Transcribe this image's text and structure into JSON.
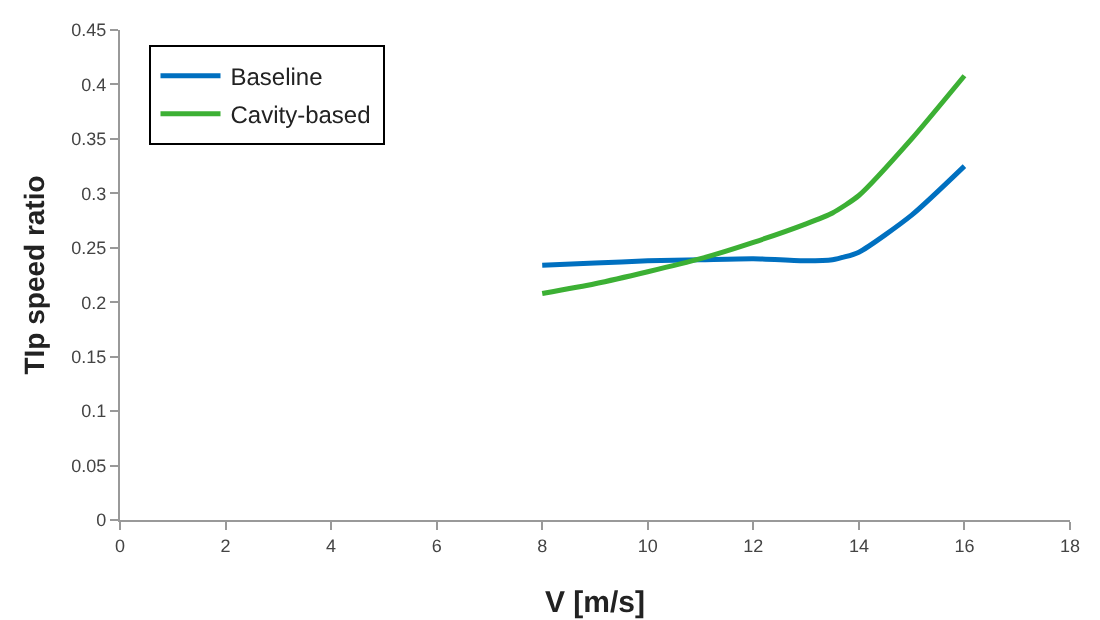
{
  "chart_data": {
    "type": "line",
    "xlabel": "V [m/s]",
    "ylabel": "TIp speed ratio",
    "x": [
      8,
      9,
      10,
      11,
      12,
      13,
      13.5,
      14,
      15,
      16
    ],
    "series": [
      {
        "name": "Baseline",
        "color": "#0070c0",
        "values": [
          0.234,
          0.236,
          0.238,
          0.239,
          0.24,
          0.238,
          0.239,
          0.246,
          0.28,
          0.325
        ]
      },
      {
        "name": "Cavity-based",
        "color": "#3cb034",
        "values": [
          0.208,
          0.217,
          0.228,
          0.24,
          0.255,
          0.272,
          0.282,
          0.298,
          0.35,
          0.408
        ]
      }
    ],
    "xlim": [
      0,
      18
    ],
    "xticks": [
      0,
      2,
      4,
      6,
      8,
      10,
      12,
      14,
      16,
      18
    ],
    "ylim": [
      0,
      0.45
    ],
    "yticks": [
      0,
      0.05,
      0.1,
      0.15,
      0.2,
      0.25,
      0.3,
      0.35,
      0.4,
      0.45
    ],
    "grid": false,
    "legend": "top left",
    "marker": "none",
    "line_style": "solid"
  }
}
